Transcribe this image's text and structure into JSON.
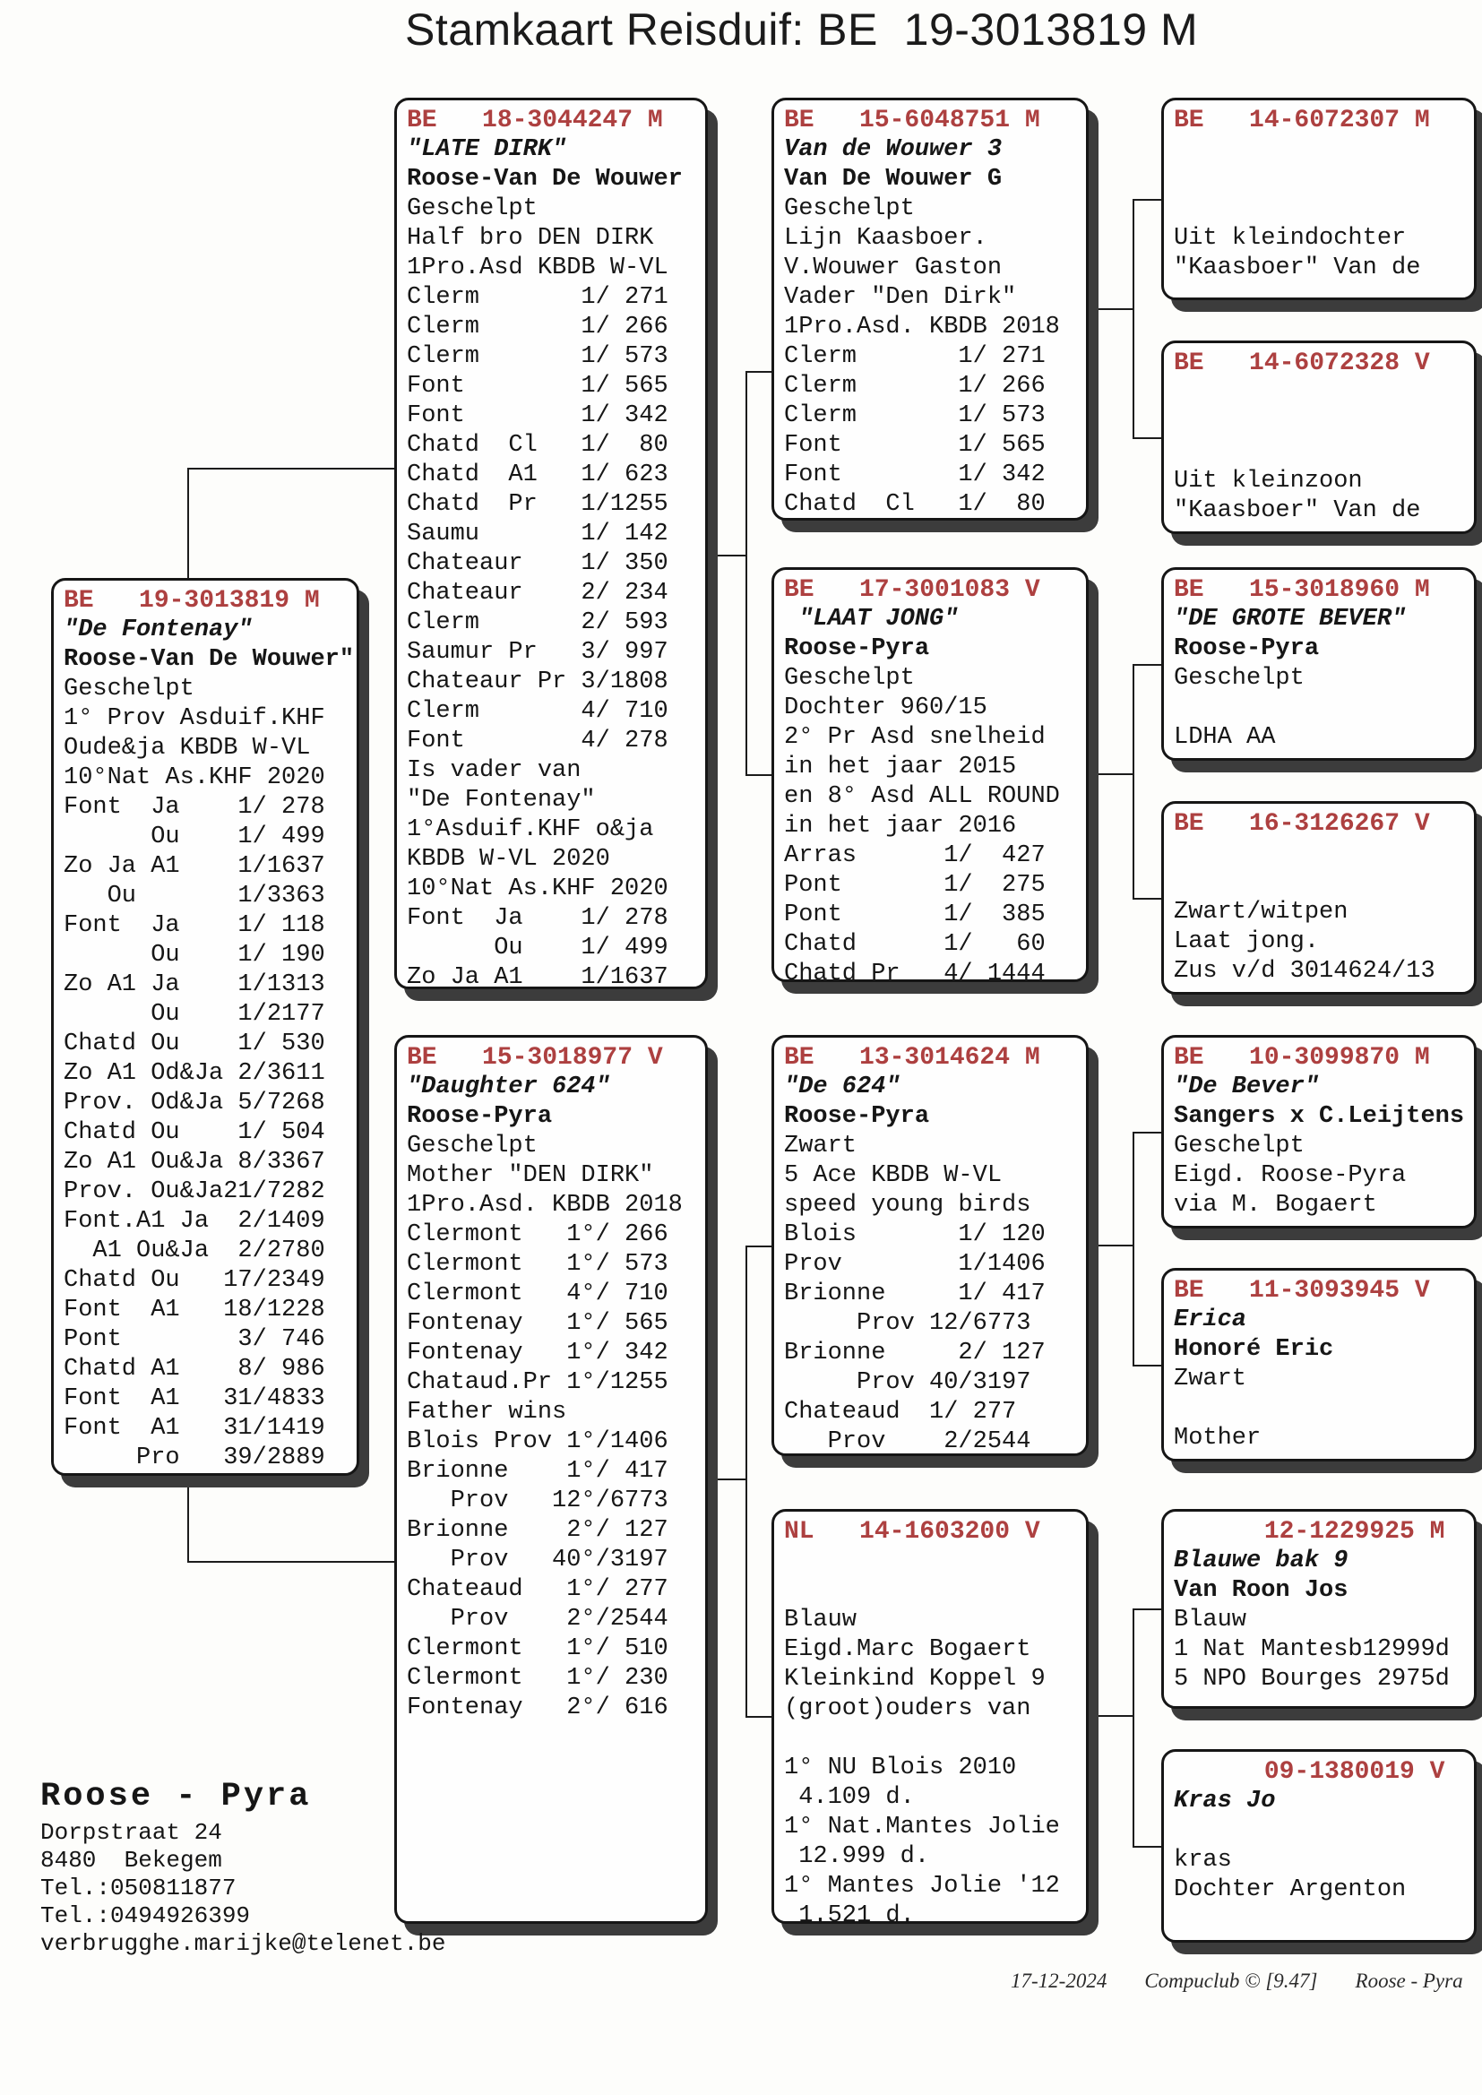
{
  "title": "Stamkaart Reisduif: BE  19-3013819 M",
  "colors": {
    "band_red": "#ad4040",
    "shadow": "#3c3c3c"
  },
  "boxes": {
    "subject": {
      "band": "BE   19-3013819 M",
      "lines": [
        [
          "\"De Fontenay\"",
          "bi"
        ],
        [
          "Roose-Van De Wouwer\"",
          "b"
        ],
        [
          "Geschelpt",
          ""
        ],
        [
          "1° Prov Asduif.KHF",
          ""
        ],
        [
          "Oude&ja KBDB W-VL",
          ""
        ],
        [
          "10°Nat As.KHF 2020",
          ""
        ],
        [
          "Font  Ja    1/ 278",
          ""
        ],
        [
          "      Ou    1/ 499",
          ""
        ],
        [
          "Zo Ja A1    1/1637",
          ""
        ],
        [
          "   Ou       1/3363",
          ""
        ],
        [
          "Font  Ja    1/ 118",
          ""
        ],
        [
          "      Ou    1/ 190",
          ""
        ],
        [
          "Zo A1 Ja    1/1313",
          ""
        ],
        [
          "      Ou    1/2177",
          ""
        ],
        [
          "Chatd Ou    1/ 530",
          ""
        ],
        [
          "Zo A1 Od&Ja 2/3611",
          ""
        ],
        [
          "Prov. Od&Ja 5/7268",
          ""
        ],
        [
          "Chatd Ou    1/ 504",
          ""
        ],
        [
          "Zo A1 Ou&Ja 8/3367",
          ""
        ],
        [
          "Prov. Ou&Ja21/7282",
          ""
        ],
        [
          "Font.A1 Ja  2/1409",
          ""
        ],
        [
          "  A1 Ou&Ja  2/2780",
          ""
        ],
        [
          "Chatd Ou   17/2349",
          ""
        ],
        [
          "Font  A1   18/1228",
          ""
        ],
        [
          "Pont        3/ 746",
          ""
        ],
        [
          "Chatd A1    8/ 986",
          ""
        ],
        [
          "Font  A1   31/4833",
          ""
        ],
        [
          "Font  A1   31/1419",
          ""
        ],
        [
          "     Pro   39/2889",
          ""
        ]
      ]
    },
    "father": {
      "band": "BE   18-3044247 M",
      "lines": [
        [
          "\"LATE DIRK\"",
          "bi"
        ],
        [
          "Roose-Van De Wouwer",
          "b"
        ],
        [
          "Geschelpt",
          ""
        ],
        [
          "Half bro DEN DIRK",
          ""
        ],
        [
          "1Pro.Asd KBDB W-VL",
          ""
        ],
        [
          "Clerm       1/ 271",
          ""
        ],
        [
          "Clerm       1/ 266",
          ""
        ],
        [
          "Clerm       1/ 573",
          ""
        ],
        [
          "Font        1/ 565",
          ""
        ],
        [
          "Font        1/ 342",
          ""
        ],
        [
          "Chatd  Cl   1/  80",
          ""
        ],
        [
          "Chatd  A1   1/ 623",
          ""
        ],
        [
          "Chatd  Pr   1/1255",
          ""
        ],
        [
          "Saumu       1/ 142",
          ""
        ],
        [
          "Chateaur    1/ 350",
          ""
        ],
        [
          "Chateaur    2/ 234",
          ""
        ],
        [
          "Clerm       2/ 593",
          ""
        ],
        [
          "Saumur Pr   3/ 997",
          ""
        ],
        [
          "Chateaur Pr 3/1808",
          ""
        ],
        [
          "Clerm       4/ 710",
          ""
        ],
        [
          "Font        4/ 278",
          ""
        ],
        [
          "Is vader van",
          ""
        ],
        [
          "\"De Fontenay\"",
          ""
        ],
        [
          "1°Asduif.KHF o&ja",
          ""
        ],
        [
          "KBDB W-VL 2020",
          ""
        ],
        [
          "10°Nat As.KHF 2020",
          ""
        ],
        [
          "Font  Ja    1/ 278",
          ""
        ],
        [
          "      Ou    1/ 499",
          ""
        ],
        [
          "Zo Ja A1    1/1637",
          ""
        ]
      ]
    },
    "mother": {
      "band": "BE   15-3018977 V",
      "lines": [
        [
          "\"Daughter 624\"",
          "bi"
        ],
        [
          "Roose-Pyra",
          "b"
        ],
        [
          "Geschelpt",
          ""
        ],
        [
          "Mother \"DEN DIRK\"",
          ""
        ],
        [
          "1Pro.Asd. KBDB 2018",
          ""
        ],
        [
          "Clermont   1°/ 266",
          ""
        ],
        [
          "Clermont   1°/ 573",
          ""
        ],
        [
          "Clermont   4°/ 710",
          ""
        ],
        [
          "Fontenay   1°/ 565",
          ""
        ],
        [
          "Fontenay   1°/ 342",
          ""
        ],
        [
          "Chataud.Pr 1°/1255",
          ""
        ],
        [
          "Father wins",
          ""
        ],
        [
          "Blois Prov 1°/1406",
          ""
        ],
        [
          "Brionne    1°/ 417",
          ""
        ],
        [
          "   Prov   12°/6773",
          ""
        ],
        [
          "Brionne    2°/ 127",
          ""
        ],
        [
          "   Prov   40°/3197",
          ""
        ],
        [
          "Chateaud   1°/ 277",
          ""
        ],
        [
          "   Prov    2°/2544",
          ""
        ],
        [
          "Clermont   1°/ 510",
          ""
        ],
        [
          "Clermont   1°/ 230",
          ""
        ],
        [
          "Fontenay   2°/ 616",
          ""
        ]
      ]
    },
    "gp1": {
      "band": "BE   15-6048751 M",
      "lines": [
        [
          "Van de Wouwer 3",
          "bi"
        ],
        [
          "Van De Wouwer G",
          "b"
        ],
        [
          "Geschelpt",
          ""
        ],
        [
          "Lijn Kaasboer.",
          ""
        ],
        [
          "V.Wouwer Gaston",
          ""
        ],
        [
          "Vader \"Den Dirk\"",
          ""
        ],
        [
          "1Pro.Asd. KBDB 2018",
          ""
        ],
        [
          "Clerm       1/ 271",
          ""
        ],
        [
          "Clerm       1/ 266",
          ""
        ],
        [
          "Clerm       1/ 573",
          ""
        ],
        [
          "Font        1/ 565",
          ""
        ],
        [
          "Font        1/ 342",
          ""
        ],
        [
          "Chatd  Cl   1/  80",
          ""
        ]
      ]
    },
    "gp2": {
      "band": "BE   17-3001083 V",
      "lines": [
        [
          " \"LAAT JONG\"",
          "bi"
        ],
        [
          "Roose-Pyra",
          "b"
        ],
        [
          "Geschelpt",
          ""
        ],
        [
          "Dochter 960/15",
          ""
        ],
        [
          "2° Pr Asd snelheid",
          ""
        ],
        [
          "in het jaar 2015",
          ""
        ],
        [
          "en 8° Asd ALL ROUND",
          ""
        ],
        [
          "in het jaar 2016",
          ""
        ],
        [
          "Arras      1/  427",
          ""
        ],
        [
          "Pont       1/  275",
          ""
        ],
        [
          "Pont       1/  385",
          ""
        ],
        [
          "Chatd      1/   60",
          ""
        ],
        [
          "Chatd Pr   4/ 1444",
          ""
        ]
      ]
    },
    "gp3": {
      "band": "BE   13-3014624 M",
      "lines": [
        [
          "\"De 624\"",
          "bi"
        ],
        [
          "Roose-Pyra",
          "b"
        ],
        [
          "Zwart",
          ""
        ],
        [
          "5 Ace KBDB W-VL",
          ""
        ],
        [
          "speed young birds",
          ""
        ],
        [
          "Blois       1/ 120",
          ""
        ],
        [
          "Prov        1/1406",
          ""
        ],
        [
          "Brionne     1/ 417",
          ""
        ],
        [
          "     Prov 12/6773",
          ""
        ],
        [
          "Brionne     2/ 127",
          ""
        ],
        [
          "     Prov 40/3197",
          ""
        ],
        [
          "Chateaud  1/ 277",
          ""
        ],
        [
          "   Prov    2/2544",
          ""
        ]
      ]
    },
    "gp4": {
      "band": "NL   14-1603200 V",
      "lines": [
        [
          "",
          ""
        ],
        [
          "",
          ""
        ],
        [
          "Blauw",
          ""
        ],
        [
          "Eigd.Marc Bogaert",
          ""
        ],
        [
          "Kleinkind Koppel 9",
          ""
        ],
        [
          "(groot)ouders van",
          ""
        ],
        [
          "",
          ""
        ],
        [
          "1° NU Blois 2010",
          ""
        ],
        [
          " 4.109 d.",
          ""
        ],
        [
          "1° Nat.Mantes Jolie",
          ""
        ],
        [
          " 12.999 d.",
          ""
        ],
        [
          "1° Mantes Jolie '12",
          ""
        ],
        [
          " 1.521 d.",
          ""
        ]
      ]
    },
    "gg1": {
      "band": "BE   14-6072307 M",
      "lines": [
        [
          "",
          ""
        ],
        [
          "",
          ""
        ],
        [
          "",
          ""
        ],
        [
          "Uit kleindochter",
          ""
        ],
        [
          "\"Kaasboer\" Van de",
          ""
        ]
      ]
    },
    "gg2": {
      "band": "BE   14-6072328 V",
      "lines": [
        [
          "",
          ""
        ],
        [
          "",
          ""
        ],
        [
          "",
          ""
        ],
        [
          "Uit kleinzoon",
          ""
        ],
        [
          "\"Kaasboer\" Van de",
          ""
        ]
      ]
    },
    "gg3": {
      "band": "BE   15-3018960 M",
      "lines": [
        [
          "\"DE GROTE BEVER\"",
          "bi"
        ],
        [
          "Roose-Pyra",
          "b"
        ],
        [
          "Geschelpt",
          ""
        ],
        [
          "",
          ""
        ],
        [
          "LDHA AA",
          ""
        ]
      ]
    },
    "gg4": {
      "band": "BE   16-3126267 V",
      "lines": [
        [
          "",
          ""
        ],
        [
          "",
          ""
        ],
        [
          "Zwart/witpen",
          ""
        ],
        [
          "Laat jong.",
          ""
        ],
        [
          "Zus v/d 3014624/13",
          ""
        ]
      ]
    },
    "gg5": {
      "band": "BE   10-3099870 M",
      "lines": [
        [
          "\"De Bever\"",
          "bi"
        ],
        [
          "Sangers x C.Leijtens",
          "b"
        ],
        [
          "Geschelpt",
          ""
        ],
        [
          "Eigd. Roose-Pyra",
          ""
        ],
        [
          "via M. Bogaert",
          ""
        ]
      ]
    },
    "gg6": {
      "band": "BE   11-3093945 V",
      "lines": [
        [
          "Erica",
          "bi"
        ],
        [
          "Honoré Eric",
          "b"
        ],
        [
          "Zwart",
          ""
        ],
        [
          "",
          ""
        ],
        [
          "Mother",
          ""
        ]
      ]
    },
    "gg7": {
      "band": "      12-1229925 M",
      "lines": [
        [
          "Blauwe bak 9",
          "bi"
        ],
        [
          "Van Roon Jos",
          "b"
        ],
        [
          "Blauw",
          ""
        ],
        [
          "1 Nat Mantesb12999d",
          ""
        ],
        [
          "5 NPO Bourges 2975d",
          ""
        ]
      ]
    },
    "gg8": {
      "band": "      09-1380019 V",
      "lines": [
        [
          "Kras Jo",
          "bi"
        ],
        [
          "",
          ""
        ],
        [
          "kras",
          ""
        ],
        [
          "Dochter Argenton",
          ""
        ]
      ]
    }
  },
  "owner": {
    "name": "Roose - Pyra",
    "address1": "Dorpstraat 24",
    "address2": "8480  Bekegem",
    "phone1": "Tel.:050811877",
    "phone2": "Tel.:0494926399",
    "email": "verbrugghe.marijke@telenet.be"
  },
  "footer": {
    "date": "17-12-2024",
    "software": "Compuclub © [9.47]",
    "owner": "Roose - Pyra"
  }
}
